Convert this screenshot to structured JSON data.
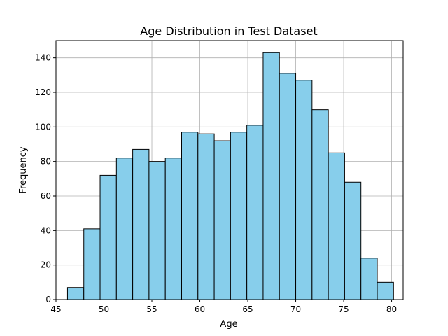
{
  "chart_data": {
    "type": "bar",
    "title": "Age Distribution in Test Dataset",
    "xlabel": "Age",
    "ylabel": "Frequency",
    "xlim": [
      45,
      81.2
    ],
    "ylim": [
      0,
      150
    ],
    "xticks": [
      45,
      50,
      55,
      60,
      65,
      70,
      75,
      80
    ],
    "yticks": [
      0,
      20,
      40,
      60,
      80,
      100,
      120,
      140
    ],
    "grid": true,
    "bar_color": "#87ceeb",
    "edge_color": "#000000",
    "bins": [
      {
        "start": 46.2,
        "end": 47.9,
        "count": 7
      },
      {
        "start": 47.9,
        "end": 49.6,
        "count": 41
      },
      {
        "start": 49.6,
        "end": 51.3,
        "count": 72
      },
      {
        "start": 51.3,
        "end": 53.0,
        "count": 82
      },
      {
        "start": 53.0,
        "end": 54.7,
        "count": 87
      },
      {
        "start": 54.7,
        "end": 56.4,
        "count": 80
      },
      {
        "start": 56.4,
        "end": 58.1,
        "count": 82
      },
      {
        "start": 58.1,
        "end": 59.8,
        "count": 97
      },
      {
        "start": 59.8,
        "end": 61.5,
        "count": 96
      },
      {
        "start": 61.5,
        "end": 63.2,
        "count": 92
      },
      {
        "start": 63.2,
        "end": 64.9,
        "count": 97
      },
      {
        "start": 64.9,
        "end": 66.6,
        "count": 101
      },
      {
        "start": 66.6,
        "end": 68.3,
        "count": 143
      },
      {
        "start": 68.3,
        "end": 70.0,
        "count": 131
      },
      {
        "start": 70.0,
        "end": 71.7,
        "count": 127
      },
      {
        "start": 71.7,
        "end": 73.4,
        "count": 110
      },
      {
        "start": 73.4,
        "end": 75.1,
        "count": 85
      },
      {
        "start": 75.1,
        "end": 76.8,
        "count": 68
      },
      {
        "start": 76.8,
        "end": 78.5,
        "count": 24
      },
      {
        "start": 78.5,
        "end": 80.2,
        "count": 10
      }
    ]
  }
}
